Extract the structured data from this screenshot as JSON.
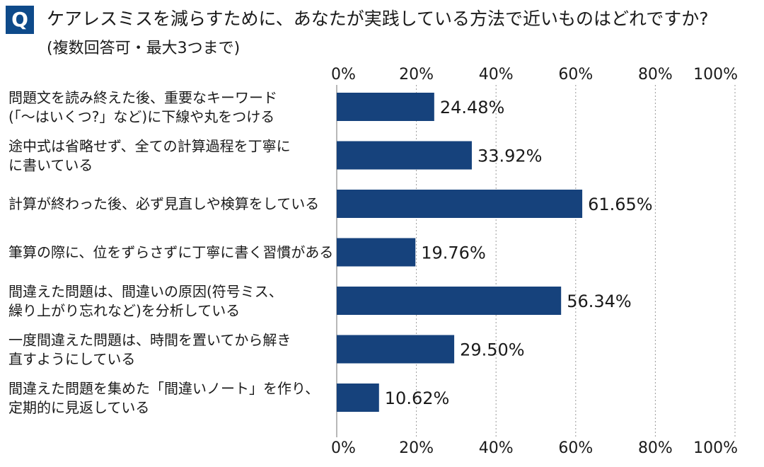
{
  "header": {
    "badge": "Q",
    "title": "ケアレスミスを減らすために、あなたが実践している方法で近いものはどれですか?",
    "subtitle": "(複数回答可・最大3つまで)"
  },
  "colors": {
    "bar": "#16427c",
    "badge": "#0e4a8a",
    "grid": "#9a9a9a"
  },
  "chart_data": {
    "type": "bar",
    "orientation": "horizontal",
    "categories": [
      [
        "問題文を読み終えた後、重要なキーワード",
        "(「〜はいくつ?」など)に下線や丸をつける"
      ],
      [
        "途中式は省略せず、全ての計算過程を丁寧に",
        "に書いている"
      ],
      [
        "計算が終わった後、必ず見直しや検算をしている"
      ],
      [
        "筆算の際に、位をずらさずに丁寧に書く習慣がある"
      ],
      [
        "間違えた問題は、間違いの原因(符号ミス、",
        "繰り上がり忘れなど)を分析している"
      ],
      [
        "一度間違えた問題は、時間を置いてから解き",
        "直すようにしている"
      ],
      [
        "間違えた問題を集めた「間違いノート」を作り、",
        "定期的に見返している"
      ]
    ],
    "values": [
      24.48,
      33.92,
      61.65,
      19.76,
      56.34,
      29.5,
      10.62
    ],
    "value_labels": [
      "24.48%",
      "33.92%",
      "61.65%",
      "19.76%",
      "56.34%",
      "29.50%",
      "10.62%"
    ],
    "xlim": [
      0,
      100
    ],
    "ticks": [
      0,
      20,
      40,
      60,
      80,
      100
    ],
    "tick_labels": [
      "0%",
      "20%",
      "40%",
      "60%",
      "80%",
      "100%"
    ],
    "grid": true,
    "legend": "none"
  }
}
